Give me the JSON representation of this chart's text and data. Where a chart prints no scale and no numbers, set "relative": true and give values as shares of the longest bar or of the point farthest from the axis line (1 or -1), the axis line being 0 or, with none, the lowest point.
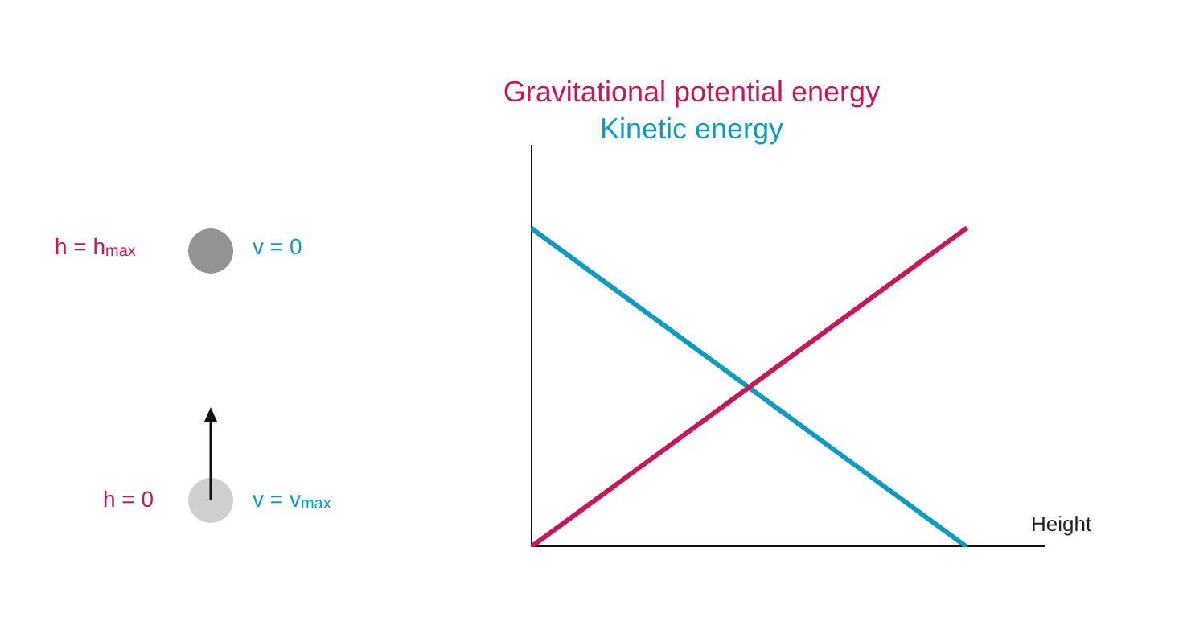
{
  "chart_data": {
    "type": "line",
    "relative": true,
    "categories": [
      null,
      null
    ],
    "xlabel": "Height",
    "series": [
      {
        "name": "Gravitational potential energy",
        "color": "#c5175b",
        "values": [
          0,
          1
        ]
      },
      {
        "name": "Kinetic energy",
        "color": "#0e9bc3",
        "values": [
          1,
          0
        ]
      }
    ],
    "legend": "top",
    "grid": false,
    "tick_labels": false,
    "marker": "none",
    "line_style": "solid",
    "annotations": [
      "h = h$_{max}$",
      "v = 0",
      "h = 0",
      "v = v$_{max}$"
    ]
  }
}
